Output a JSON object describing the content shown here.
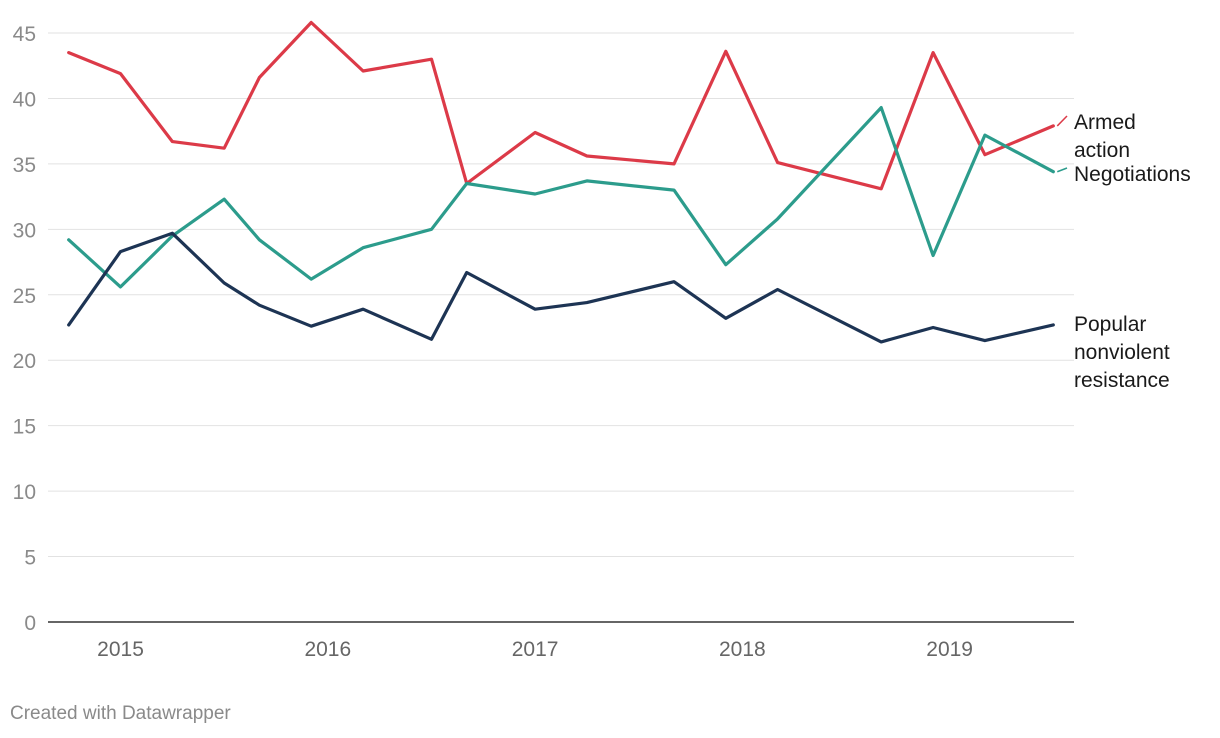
{
  "chart_data": {
    "type": "line",
    "title": "",
    "xlabel": "",
    "ylabel": "",
    "ylim": [
      0,
      45
    ],
    "xlim": [
      2014.65,
      2019.6
    ],
    "y_ticks": [
      0,
      5,
      10,
      15,
      20,
      25,
      30,
      35,
      40,
      45
    ],
    "x_ticks": [
      {
        "value": 2015.0,
        "label": "2015"
      },
      {
        "value": 2016.0,
        "label": "2016"
      },
      {
        "value": 2017.0,
        "label": "2017"
      },
      {
        "value": 2018.0,
        "label": "2018"
      },
      {
        "value": 2019.0,
        "label": "2019"
      }
    ],
    "grid": true,
    "legend": "direct labels at line ends (right)",
    "series": [
      {
        "name": "Armed action",
        "label_lines": [
          "Armed",
          "action"
        ],
        "color": "#dc3a48",
        "x": [
          2014.75,
          2015.0,
          2015.25,
          2015.5,
          2015.67,
          2015.92,
          2016.17,
          2016.5,
          2016.67,
          2017.0,
          2017.25,
          2017.67,
          2017.92,
          2018.17,
          2018.67,
          2018.92,
          2019.17,
          2019.5
        ],
        "values": [
          43.5,
          41.9,
          36.7,
          36.2,
          41.6,
          45.8,
          42.1,
          43.0,
          33.5,
          37.4,
          35.6,
          35.0,
          43.6,
          35.1,
          33.1,
          43.5,
          35.7,
          37.9
        ]
      },
      {
        "name": "Negotiations",
        "label_lines": [
          "Negotiations"
        ],
        "color": "#2c9c8c",
        "x": [
          2014.75,
          2015.0,
          2015.25,
          2015.5,
          2015.67,
          2015.92,
          2016.17,
          2016.5,
          2016.67,
          2017.0,
          2017.25,
          2017.67,
          2017.92,
          2018.17,
          2018.67,
          2018.92,
          2019.17,
          2019.5
        ],
        "values": [
          29.2,
          25.6,
          29.5,
          32.3,
          29.2,
          26.2,
          28.6,
          30.0,
          33.5,
          32.7,
          33.7,
          33.0,
          27.3,
          30.8,
          39.3,
          28.0,
          37.2,
          34.4
        ]
      },
      {
        "name": "Popular nonviolent resistance",
        "label_lines": [
          "Popular",
          "nonviolent",
          "resistance"
        ],
        "color": "#1d3454",
        "x": [
          2014.75,
          2015.0,
          2015.25,
          2015.5,
          2015.67,
          2015.92,
          2016.17,
          2016.5,
          2016.67,
          2017.0,
          2017.25,
          2017.67,
          2017.92,
          2018.17,
          2018.67,
          2018.92,
          2019.17,
          2019.5
        ],
        "values": [
          22.7,
          28.3,
          29.7,
          25.9,
          24.2,
          22.6,
          23.9,
          21.6,
          26.7,
          23.9,
          24.4,
          26.0,
          23.2,
          25.4,
          21.4,
          22.5,
          21.5,
          22.7
        ]
      }
    ]
  },
  "footer": {
    "credit": "Created with Datawrapper"
  }
}
